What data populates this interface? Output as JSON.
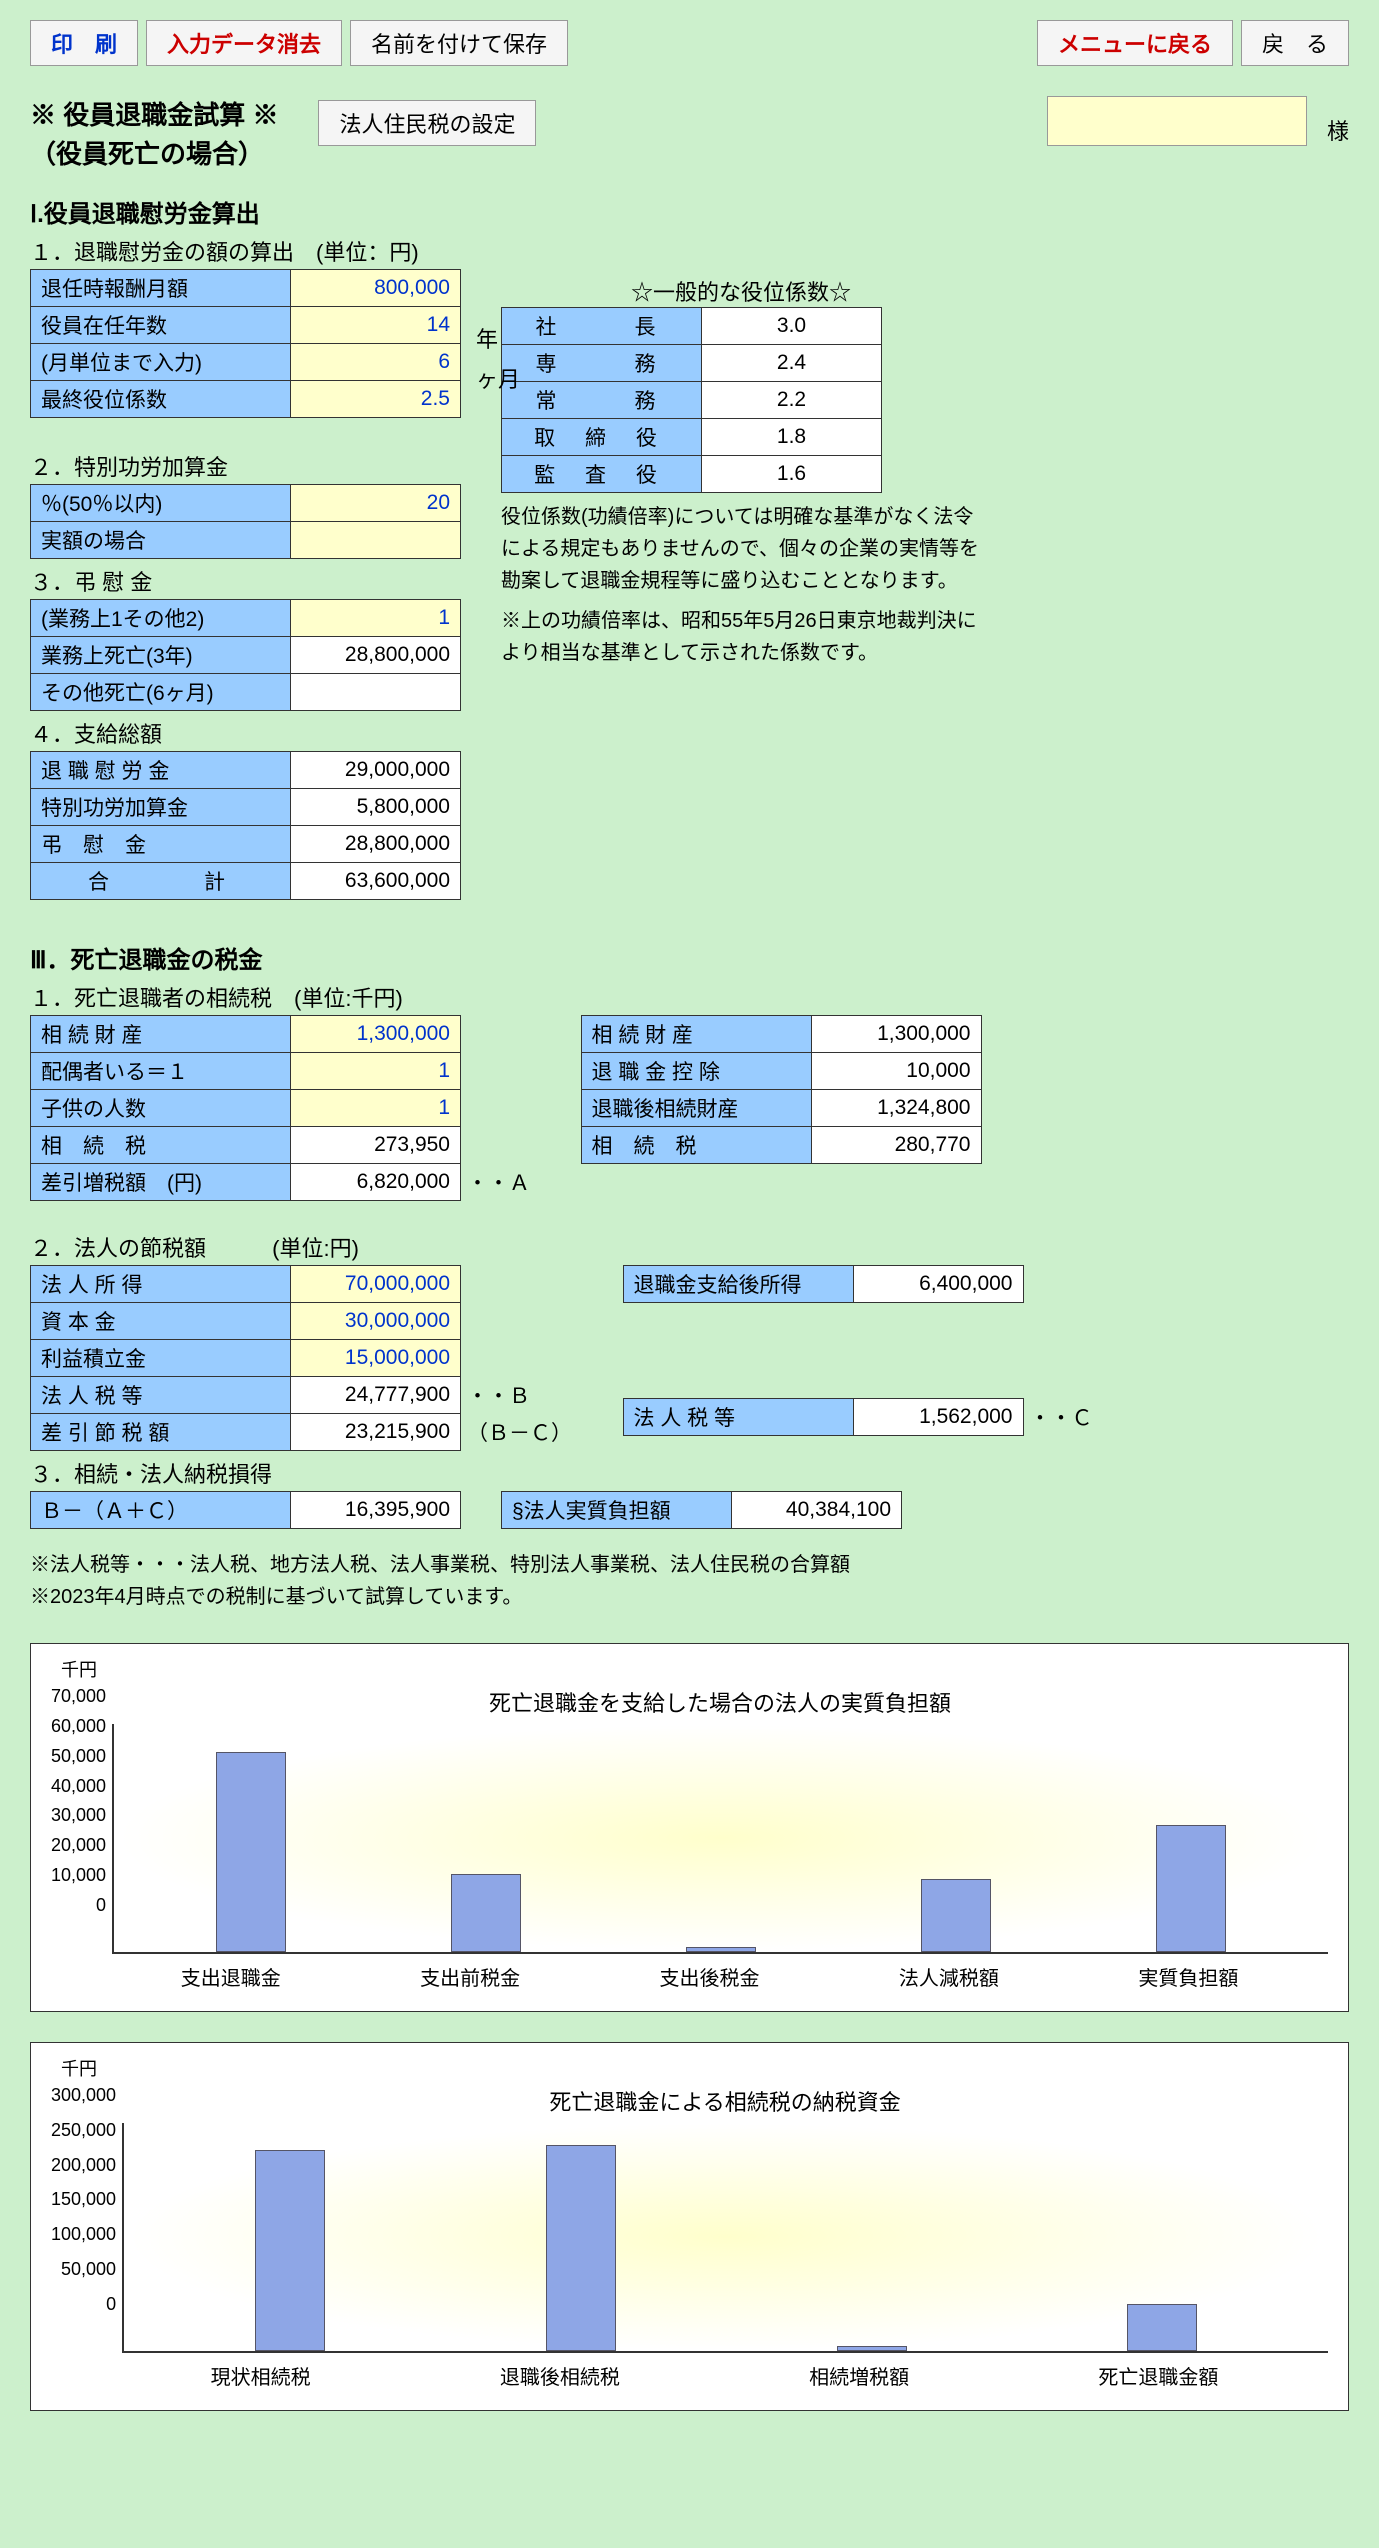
{
  "toolbar": {
    "print": "印　刷",
    "clear": "入力データ消去",
    "saveAs": "名前を付けて保存",
    "menu": "メニューに戻る",
    "back": "戻　る",
    "settings": "法人住民税の設定"
  },
  "title": {
    "line1": "※ 役員退職金試算 ※",
    "line2": "（役員死亡の場合）",
    "sama": "様"
  },
  "sec1": {
    "head": "Ⅰ.役員退職慰労金算出",
    "sub1": "１．退職慰労金の額の算出　(単位：円)",
    "r1": {
      "label": "退任時報酬月額",
      "val": "800,000"
    },
    "r2": {
      "label": "役員在任年数",
      "val": "14",
      "unit": "年"
    },
    "r3": {
      "label": "(月単位まで入力)",
      "val": "6",
      "unit": "ヶ月"
    },
    "r4": {
      "label": "最終役位係数",
      "val": "2.5"
    }
  },
  "coef": {
    "head": "☆一般的な役位係数☆",
    "rows": [
      {
        "label": "社　　長",
        "val": "3.0"
      },
      {
        "label": "専　　務",
        "val": "2.4"
      },
      {
        "label": "常　　務",
        "val": "2.2"
      },
      {
        "label": "取 締 役",
        "val": "1.8"
      },
      {
        "label": "監 査 役",
        "val": "1.6"
      }
    ],
    "note1": "役位係数(功績倍率)については明確な基準がなく法令による規定もありませんので、個々の企業の実情等を勘案して退職金規程等に盛り込むこととなります。",
    "note2": "※上の功績倍率は、昭和55年5月26日東京地裁判決により相当な基準として示された係数です。"
  },
  "sec2": {
    "head": "２．特別功労加算金",
    "r1": {
      "label": "％(50％以内)",
      "val": "20"
    },
    "r2": {
      "label": "実額の場合",
      "val": ""
    }
  },
  "sec3": {
    "head": "３．弔 慰 金",
    "r1": {
      "label": "(業務上1その他2)",
      "val": "1"
    },
    "r2": {
      "label": "業務上死亡(3年)",
      "val": "28,800,000"
    },
    "r3": {
      "label": "その他死亡(6ヶ月)",
      "val": ""
    }
  },
  "sec4": {
    "head": "４．支給総額",
    "r1": {
      "label": "退 職 慰 労 金",
      "val": "29,000,000"
    },
    "r2": {
      "label": "特別功労加算金",
      "val": "5,800,000"
    },
    "r3": {
      "label": "弔　慰　金",
      "val": "28,800,000"
    },
    "r4": {
      "label": "合　　　計",
      "val": "63,600,000"
    }
  },
  "sec3main": {
    "head": "Ⅲ．死亡退職金の税金",
    "sub1": "１．死亡退職者の相続税　(単位:千円)",
    "left": [
      {
        "label": "相 続 財 産",
        "val": "1,300,000",
        "input": true
      },
      {
        "label": "配偶者いる＝１",
        "val": "1",
        "input": true
      },
      {
        "label": "子供の人数",
        "val": "1",
        "input": true
      },
      {
        "label": "相　続　税",
        "val": "273,950"
      },
      {
        "label": "差引増税額　(円)",
        "val": "6,820,000",
        "annot": "・・Ａ"
      }
    ],
    "right": [
      {
        "label": "相 続 財 産",
        "val": "1,300,000"
      },
      {
        "label": "退 職 金 控 除",
        "val": "10,000"
      },
      {
        "label": "退職後相続財産",
        "val": "1,324,800"
      },
      {
        "label": "相　続　税",
        "val": "280,770"
      }
    ]
  },
  "sec3sub2": {
    "head": "２．法人の節税額",
    "unit": "(単位:円)",
    "left": [
      {
        "label": "法 人 所 得",
        "val": "70,000,000",
        "input": true
      },
      {
        "label": "資 本 金",
        "val": "30,000,000",
        "input": true
      },
      {
        "label": "利益積立金",
        "val": "15,000,000",
        "input": true
      },
      {
        "label": "法 人 税 等",
        "val": "24,777,900",
        "annot": "・・Ｂ"
      },
      {
        "label": "差 引 節 税 額",
        "val": "23,215,900",
        "annot": "（Ｂ－Ｃ）"
      }
    ],
    "right": [
      {
        "label": "退職金支給後所得",
        "val": "6,400,000"
      },
      {
        "label": "法 人 税 等",
        "val": "1,562,000",
        "annot": "・・Ｃ"
      }
    ]
  },
  "sec3sub3": {
    "head": "３．相続・法人納税損得",
    "left": {
      "label": "Ｂ－（Ａ＋Ｃ）",
      "val": "16,395,900"
    },
    "right": {
      "label": "§法人実質負担額",
      "val": "40,384,100"
    }
  },
  "disclaimer": {
    "l1": "※法人税等・・・法人税、地方法人税、法人事業税、特別法人事業税、法人住民税の合算額",
    "l2": "※2023年4月時点での税制に基づいて試算しています。"
  },
  "chart1": {
    "title": "死亡退職金を支給した場合の法人の実質負担額",
    "yunit": "千円",
    "ymax": 70000,
    "yticks": [
      "70,000",
      "60,000",
      "50,000",
      "40,000",
      "30,000",
      "20,000",
      "10,000",
      "0"
    ],
    "bars": [
      {
        "label": "支出退職金",
        "value": 63600
      },
      {
        "label": "支出前税金",
        "value": 24778
      },
      {
        "label": "支出後税金",
        "value": 1562
      },
      {
        "label": "法人減税額",
        "value": 23216
      },
      {
        "label": "実質負担額",
        "value": 40384
      }
    ],
    "barColor": "#8ea6e6"
  },
  "chart2": {
    "title": "死亡退職金による相続税の納税資金",
    "yunit": "千円",
    "ymax": 300000,
    "yticks": [
      "300,000",
      "250,000",
      "200,000",
      "150,000",
      "100,000",
      "50,000",
      "0"
    ],
    "bars": [
      {
        "label": "現状相続税",
        "value": 273950
      },
      {
        "label": "退職後相続税",
        "value": 280770
      },
      {
        "label": "相続増税額",
        "value": 6820
      },
      {
        "label": "死亡退職金額",
        "value": 63600
      }
    ],
    "barColor": "#8ea6e6"
  }
}
